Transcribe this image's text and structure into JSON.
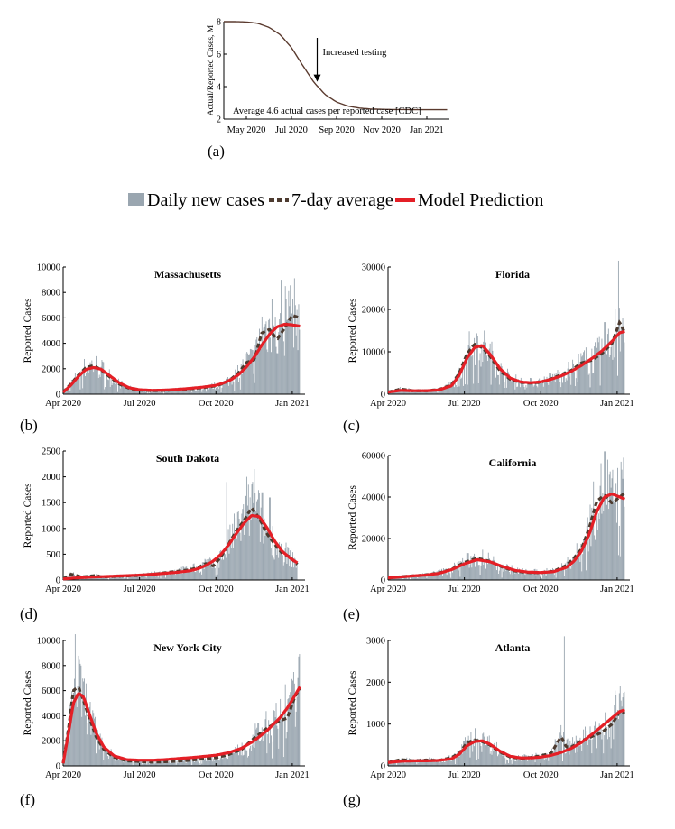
{
  "legend": {
    "items": [
      {
        "label": "Daily new cases",
        "color": "#9aa6b0",
        "shape": "bar"
      },
      {
        "label": "7-day average",
        "color": "#4d3b30",
        "shape": "dash"
      },
      {
        "label": "Model Prediction",
        "color": "#e41f26",
        "shape": "line"
      }
    ]
  },
  "panels": {
    "a": {
      "tag": "(a)"
    },
    "b": {
      "tag": "(b)"
    },
    "c": {
      "tag": "(c)"
    },
    "d": {
      "tag": "(d)"
    },
    "e": {
      "tag": "(e)"
    },
    "f": {
      "tag": "(f)"
    },
    "g": {
      "tag": "(g)"
    }
  },
  "chart_data": [
    {
      "id": "a",
      "type": "line",
      "title": "",
      "xlabel": "",
      "ylabel": "Actual/Reported Cases, M",
      "xlim": [
        0,
        10
      ],
      "ylim": [
        2,
        8
      ],
      "xticks": [
        1,
        3,
        5,
        7,
        9
      ],
      "xtick_labels": [
        "May 2020",
        "Jul 2020",
        "Sep 2020",
        "Nov 2020",
        "Jan 2021"
      ],
      "yticks": [
        2,
        4,
        6,
        8
      ],
      "color": "#5a3a2e",
      "curve": {
        "x": [
          0,
          0.5,
          1,
          1.5,
          2,
          2.5,
          3,
          3.5,
          4,
          4.5,
          5,
          5.5,
          6,
          6.5,
          7,
          7.5,
          8,
          8.5,
          9,
          9.5,
          9.9
        ],
        "y": [
          8,
          8,
          7.98,
          7.9,
          7.65,
          7.2,
          6.4,
          5.3,
          4.25,
          3.5,
          3.05,
          2.8,
          2.68,
          2.62,
          2.6,
          2.59,
          2.59,
          2.58,
          2.58,
          2.58,
          2.58
        ]
      },
      "annotations": [
        {
          "text": "Increased testing",
          "arrow_to": [
            3.9,
            4.3
          ]
        },
        {
          "text": "Average 4.6 actual cases per reported case [CDC]"
        }
      ]
    },
    {
      "id": "b",
      "type": "bar+line",
      "title": "Massachusetts",
      "ylabel": "Reported Cases",
      "xlim": [
        0,
        9.5
      ],
      "ylim": [
        0,
        10000
      ],
      "yticks": [
        0,
        2000,
        4000,
        6000,
        8000,
        10000
      ],
      "xticks": [
        0,
        3,
        6,
        9
      ],
      "xtick_labels": [
        "Apr 2020",
        "Jul 2020",
        "Oct 2020",
        "Jan 2021"
      ],
      "model": {
        "x": [
          0,
          0.3,
          0.6,
          0.9,
          1.2,
          1.5,
          1.8,
          2.2,
          2.6,
          3,
          3.5,
          4,
          4.5,
          5,
          5.5,
          6,
          6.3,
          6.6,
          6.9,
          7.2,
          7.5,
          7.8,
          8.1,
          8.4,
          8.7,
          9,
          9.3
        ],
        "y": [
          150,
          700,
          1400,
          1950,
          2100,
          1950,
          1500,
          900,
          500,
          350,
          300,
          320,
          380,
          460,
          560,
          700,
          880,
          1150,
          1550,
          2150,
          2900,
          3850,
          4700,
          5300,
          5500,
          5450,
          5350
        ]
      },
      "avg": {
        "x": [
          0,
          0.3,
          0.6,
          0.9,
          1.2,
          1.5,
          1.8,
          2.2,
          2.6,
          3,
          3.5,
          4,
          4.5,
          5,
          5.5,
          6,
          6.3,
          6.6,
          6.9,
          7.2,
          7.5,
          7.8,
          8.1,
          8.4,
          8.7,
          9,
          9.3
        ],
        "y": [
          150,
          800,
          1500,
          2100,
          2250,
          1900,
          1400,
          800,
          450,
          320,
          280,
          300,
          350,
          420,
          520,
          650,
          850,
          1200,
          1700,
          2500,
          2700,
          4800,
          5100,
          4300,
          5200,
          6200,
          6000
        ]
      },
      "spikes": [
        [
          8.2,
          7500
        ],
        [
          8.55,
          9000
        ],
        [
          8.7,
          8500
        ],
        [
          8.85,
          8100
        ],
        [
          9.1,
          7000
        ]
      ]
    },
    {
      "id": "c",
      "type": "bar+line",
      "title": "Florida",
      "ylabel": "Reported Cases",
      "xlim": [
        0,
        9.5
      ],
      "ylim": [
        0,
        30000
      ],
      "yticks": [
        0,
        10000,
        20000,
        30000
      ],
      "xticks": [
        0,
        3,
        6,
        9
      ],
      "xtick_labels": [
        "Apr 2020",
        "Jul 2020",
        "Oct 2020",
        "Jan 2021"
      ],
      "model": {
        "x": [
          0,
          0.5,
          1,
          1.5,
          2,
          2.5,
          2.8,
          3.1,
          3.4,
          3.7,
          4,
          4.4,
          4.8,
          5.2,
          5.6,
          6,
          6.4,
          6.8,
          7.2,
          7.6,
          8,
          8.4,
          8.8,
          9.1,
          9.3
        ],
        "y": [
          500,
          900,
          800,
          800,
          1000,
          2000,
          4500,
          8500,
          11000,
          11500,
          9500,
          6000,
          3800,
          2900,
          2700,
          2900,
          3500,
          4300,
          5400,
          6800,
          8400,
          10200,
          12500,
          14500,
          14800
        ]
      },
      "avg": {
        "x": [
          0,
          0.5,
          1,
          1.5,
          2,
          2.5,
          2.8,
          3.1,
          3.4,
          3.7,
          4,
          4.4,
          4.8,
          5.2,
          5.6,
          6,
          6.4,
          6.8,
          7.2,
          7.6,
          8,
          8.4,
          8.8,
          9.1,
          9.3
        ],
        "y": [
          500,
          1200,
          800,
          800,
          1100,
          2200,
          5000,
          9500,
          11800,
          11000,
          9000,
          5500,
          3500,
          2800,
          2600,
          2800,
          3600,
          4600,
          5600,
          7400,
          8000,
          9600,
          12000,
          17000,
          14500
        ]
      },
      "spikes": [
        [
          8.5,
          17000
        ],
        [
          8.9,
          20000
        ],
        [
          9.05,
          31500
        ],
        [
          9.2,
          18000
        ]
      ]
    },
    {
      "id": "d",
      "type": "bar+line",
      "title": "South Dakota",
      "ylabel": "Reported Cases",
      "xlim": [
        0,
        9.5
      ],
      "ylim": [
        0,
        2500
      ],
      "yticks": [
        0,
        500,
        1000,
        1500,
        2000,
        2500
      ],
      "xticks": [
        0,
        3,
        6,
        9
      ],
      "xtick_labels": [
        "Apr 2020",
        "Jul 2020",
        "Oct 2020",
        "Jan 2021"
      ],
      "model": {
        "x": [
          0,
          0.5,
          1,
          1.5,
          2,
          2.5,
          3,
          3.5,
          4,
          4.5,
          5,
          5.3,
          5.6,
          5.9,
          6.2,
          6.5,
          6.8,
          7.1,
          7.4,
          7.7,
          8,
          8.3,
          8.6,
          8.9,
          9.2
        ],
        "y": [
          20,
          40,
          55,
          65,
          75,
          85,
          95,
          110,
          130,
          150,
          180,
          220,
          280,
          370,
          500,
          680,
          900,
          1100,
          1250,
          1230,
          1020,
          760,
          560,
          430,
          330
        ]
      },
      "avg": {
        "x": [
          0,
          0.3,
          0.5,
          0.7,
          1,
          1.3,
          1.5,
          2,
          2.5,
          3,
          3.5,
          4,
          4.5,
          5,
          5.3,
          5.6,
          5.9,
          6.2,
          6.5,
          6.8,
          7.1,
          7.4,
          7.7,
          8,
          8.3,
          8.6,
          8.9,
          9.2
        ],
        "y": [
          20,
          110,
          90,
          60,
          70,
          90,
          60,
          70,
          80,
          90,
          110,
          140,
          170,
          200,
          240,
          320,
          270,
          450,
          700,
          950,
          1150,
          1400,
          1200,
          900,
          700,
          520,
          450,
          300
        ]
      },
      "spikes": [
        [
          6.4,
          1900
        ],
        [
          7.2,
          2000
        ],
        [
          7.5,
          2150
        ],
        [
          7.8,
          1700
        ],
        [
          8.1,
          1600
        ]
      ]
    },
    {
      "id": "e",
      "type": "bar+line",
      "title": "California",
      "ylabel": "Reported Cases",
      "xlim": [
        0,
        9.5
      ],
      "ylim": [
        0,
        60000
      ],
      "yticks": [
        0,
        20000,
        40000,
        60000
      ],
      "xticks": [
        0,
        3,
        6,
        9
      ],
      "xtick_labels": [
        "Apr 2020",
        "Jul 2020",
        "Oct 2020",
        "Jan 2021"
      ],
      "model": {
        "x": [
          0,
          0.5,
          1,
          1.5,
          2,
          2.5,
          3,
          3.5,
          4,
          4.5,
          5,
          5.5,
          6,
          6.5,
          7,
          7.3,
          7.6,
          7.9,
          8.2,
          8.5,
          8.8,
          9.1,
          9.3
        ],
        "y": [
          1000,
          1500,
          2000,
          2400,
          3200,
          5000,
          7800,
          9800,
          8800,
          6500,
          4600,
          3800,
          3600,
          4000,
          6000,
          9000,
          14000,
          22000,
          33000,
          40000,
          41500,
          40000,
          39000
        ]
      },
      "avg": {
        "x": [
          0,
          0.5,
          1,
          1.5,
          2,
          2.5,
          3,
          3.5,
          4,
          4.5,
          5,
          5.5,
          6,
          6.5,
          7,
          7.3,
          7.6,
          7.9,
          8.2,
          8.5,
          8.8,
          9.1,
          9.3
        ],
        "y": [
          1000,
          1600,
          2000,
          2500,
          3400,
          5200,
          8500,
          10500,
          9000,
          6200,
          4300,
          3600,
          3500,
          4200,
          7000,
          10500,
          15000,
          25000,
          38000,
          41000,
          37000,
          40000,
          42000
        ]
      },
      "spikes": [
        [
          8.5,
          62000
        ],
        [
          8.6,
          58000
        ],
        [
          9.0,
          54000
        ]
      ]
    },
    {
      "id": "f",
      "type": "bar+line",
      "title": "New York City",
      "ylabel": "Reported Cases",
      "xlim": [
        0,
        9.5
      ],
      "ylim": [
        0,
        10000
      ],
      "yticks": [
        0,
        2000,
        4000,
        6000,
        8000,
        10000
      ],
      "xticks": [
        0,
        3,
        6,
        9
      ],
      "xtick_labels": [
        "Apr 2020",
        "Jul 2020",
        "Oct 2020",
        "Jan 2021"
      ],
      "model": {
        "x": [
          0,
          0.2,
          0.4,
          0.6,
          0.8,
          1,
          1.3,
          1.6,
          2,
          2.5,
          3,
          3.5,
          4,
          4.5,
          5,
          5.5,
          6,
          6.5,
          7,
          7.5,
          8,
          8.5,
          8.8,
          9.1,
          9.3
        ],
        "y": [
          200,
          2500,
          5000,
          5800,
          5500,
          4300,
          2600,
          1500,
          800,
          500,
          450,
          450,
          500,
          580,
          650,
          750,
          850,
          1050,
          1400,
          2000,
          2800,
          3800,
          4600,
          5600,
          6300
        ]
      },
      "avg": {
        "x": [
          0,
          0.2,
          0.4,
          0.6,
          0.8,
          1,
          1.3,
          1.6,
          2,
          2.5,
          3,
          3.5,
          4,
          4.5,
          5,
          5.5,
          6,
          6.5,
          7,
          7.5,
          8,
          8.5,
          8.8,
          9.1,
          9.3
        ],
        "y": [
          200,
          2800,
          6000,
          6300,
          5200,
          4000,
          2300,
          1300,
          700,
          400,
          350,
          300,
          330,
          380,
          450,
          550,
          650,
          900,
          1300,
          2200,
          3000,
          3600,
          3800,
          5500,
          6200
        ]
      },
      "spikes": [
        [
          0.45,
          10700
        ],
        [
          0.7,
          8000
        ],
        [
          8.7,
          6500
        ],
        [
          9.0,
          6800
        ],
        [
          9.2,
          7000
        ]
      ]
    },
    {
      "id": "g",
      "type": "bar+line",
      "title": "Atlanta",
      "ylabel": "Reported Cases",
      "xlim": [
        0,
        9.5
      ],
      "ylim": [
        0,
        3000
      ],
      "yticks": [
        0,
        1000,
        2000,
        3000
      ],
      "xticks": [
        0,
        3,
        6,
        9
      ],
      "xtick_labels": [
        "Apr 2020",
        "Jul 2020",
        "Oct 2020",
        "Jan 2021"
      ],
      "model": {
        "x": [
          0,
          0.5,
          1,
          1.5,
          2,
          2.5,
          2.8,
          3.1,
          3.4,
          3.7,
          4,
          4.4,
          4.8,
          5.2,
          5.6,
          6,
          6.4,
          6.8,
          7.2,
          7.6,
          8,
          8.4,
          8.8,
          9.1,
          9.3
        ],
        "y": [
          80,
          110,
          120,
          120,
          130,
          170,
          280,
          480,
          580,
          600,
          520,
          350,
          230,
          190,
          190,
          210,
          250,
          320,
          420,
          560,
          750,
          950,
          1150,
          1300,
          1340
        ]
      },
      "avg": {
        "x": [
          0,
          0.5,
          1,
          1.5,
          2,
          2.5,
          2.8,
          3.1,
          3.4,
          3.7,
          4,
          4.4,
          4.8,
          5.2,
          5.6,
          6,
          6.4,
          6.8,
          7,
          7.2,
          7.6,
          8,
          8.4,
          8.8,
          9.1,
          9.3
        ],
        "y": [
          80,
          150,
          120,
          140,
          130,
          200,
          300,
          550,
          620,
          580,
          500,
          330,
          210,
          180,
          200,
          240,
          300,
          700,
          450,
          450,
          600,
          700,
          800,
          1000,
          1300,
          1250
        ]
      },
      "spikes": [
        [
          6.9,
          3100
        ],
        [
          3.4,
          900
        ],
        [
          8.9,
          1800
        ],
        [
          9.1,
          1900
        ]
      ]
    }
  ]
}
